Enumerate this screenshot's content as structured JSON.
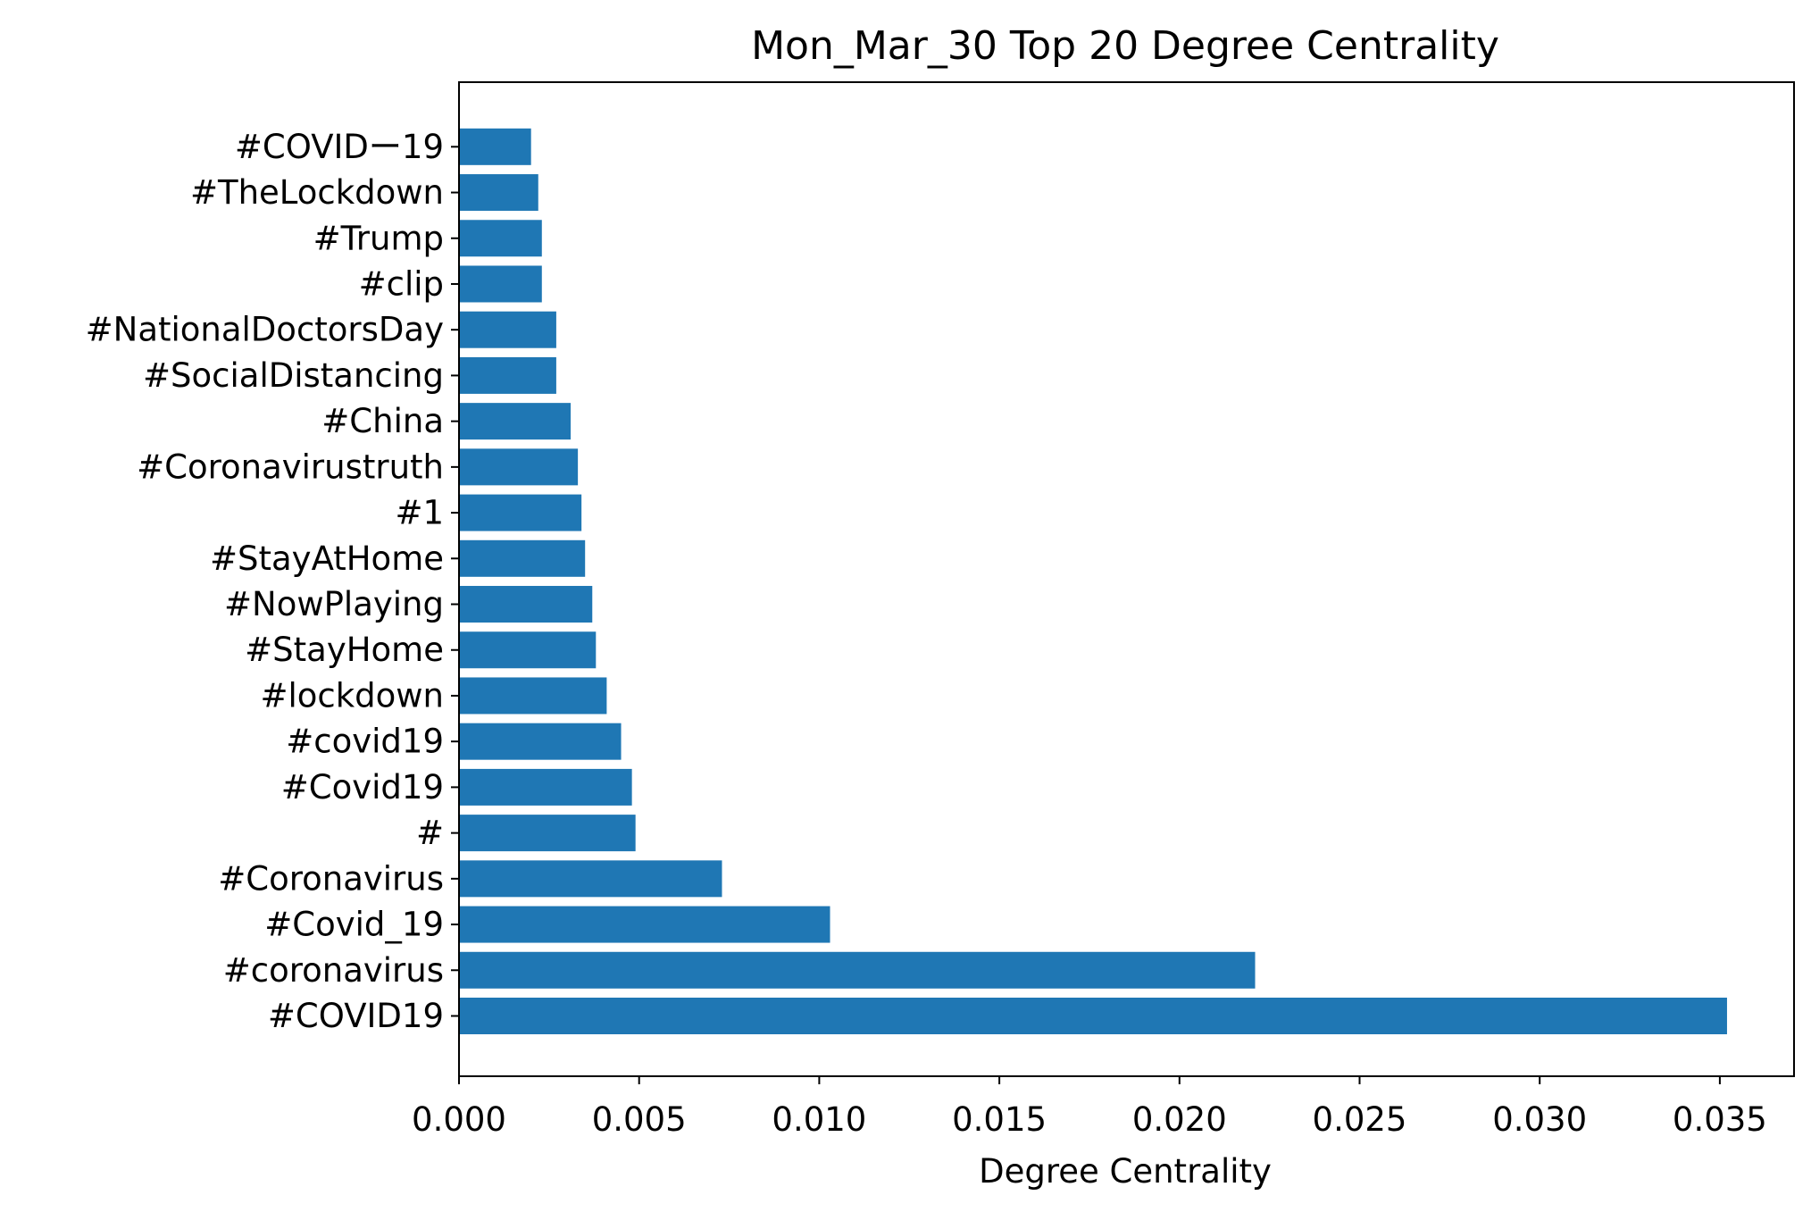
{
  "chart_data": {
    "type": "bar",
    "orientation": "horizontal",
    "title": "Mon_Mar_30 Top 20 Degree Centrality",
    "xlabel": "Degree Centrality",
    "ylabel": "",
    "xlim": [
      0,
      0.037
    ],
    "grid": false,
    "legend": "none",
    "color": "#1f77b4",
    "x_ticks": [
      0.0,
      0.005,
      0.01,
      0.015,
      0.02,
      0.025,
      0.03,
      0.035
    ],
    "x_tick_labels": [
      "0.000",
      "0.005",
      "0.010",
      "0.015",
      "0.020",
      "0.025",
      "0.030",
      "0.035"
    ],
    "categories": [
      "#COVID19",
      "#coronavirus",
      "#Covid_19",
      "#Coronavirus",
      "#",
      "#Covid19",
      "#covid19",
      "#lockdown",
      "#StayHome",
      "#NowPlaying",
      "#StayAtHome",
      "#1",
      "#Coronavirustruth",
      "#China",
      "#SocialDistancing",
      "#NationalDoctorsDay",
      "#clip",
      "#Trump",
      "#TheLockdown",
      "#COVIDー19"
    ],
    "values": [
      0.0352,
      0.0221,
      0.0103,
      0.0073,
      0.0049,
      0.0048,
      0.0045,
      0.0041,
      0.0038,
      0.0037,
      0.0035,
      0.0034,
      0.0033,
      0.0031,
      0.0027,
      0.0027,
      0.0023,
      0.0023,
      0.0022,
      0.002
    ]
  }
}
